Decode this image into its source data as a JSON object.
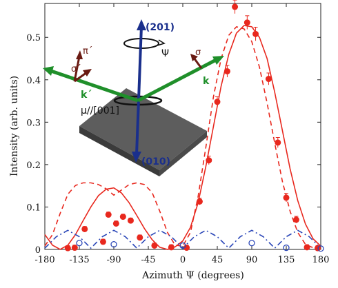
{
  "chart_data": {
    "type": "scatter",
    "xlabel": "Azimuth Ψ (degrees)",
    "ylabel": "Intensity (arb. units)",
    "xlim": [
      -180,
      180
    ],
    "ylim": [
      0,
      0.58
    ],
    "x_ticks": [
      "-180",
      "-135",
      "-90",
      "-45",
      "0",
      "45",
      "90",
      "135",
      "180"
    ],
    "y_ticks": [
      "0",
      "0.1",
      "0.2",
      "0.3",
      "0.4",
      "0.5"
    ],
    "colors": {
      "red": "#e8281e",
      "blue": "#2b47b8",
      "green": "#1f8f2a",
      "brown": "#6a1a12",
      "navy": "#1a2f8c",
      "slab": "#5a5a5a"
    },
    "series": [
      {
        "kind": "data-points-filled",
        "color": "#e8281e",
        "x": [
          -150,
          -141,
          -128,
          -104,
          -97,
          -87,
          -78,
          -68,
          -56,
          -37,
          -15,
          5,
          22,
          34,
          45,
          58,
          68,
          84,
          95,
          112,
          124,
          135,
          148,
          162,
          176
        ],
        "y": [
          0.003,
          0.004,
          0.048,
          0.018,
          0.082,
          0.061,
          0.077,
          0.068,
          0.028,
          0.009,
          0.005,
          0.004,
          0.113,
          0.21,
          0.348,
          0.42,
          0.572,
          0.535,
          0.508,
          0.402,
          0.252,
          0.122,
          0.07,
          0.005,
          0.003
        ],
        "err": [
          0.006,
          0.006,
          0.006,
          0.006,
          0.006,
          0.006,
          0.006,
          0.006,
          0.006,
          0.006,
          0.006,
          0.006,
          0.008,
          0.01,
          0.012,
          0.014,
          0.016,
          0.016,
          0.016,
          0.014,
          0.012,
          0.01,
          0.008,
          0.006,
          0.006
        ]
      },
      {
        "kind": "data-points-open",
        "color": "#2b47b8",
        "x": [
          -135,
          -90,
          0,
          90,
          135,
          180
        ],
        "y": [
          0.015,
          0.012,
          0.009,
          0.015,
          0.004,
          0.002
        ]
      },
      {
        "kind": "fit-solid",
        "color": "#e8281e",
        "x": [
          -180,
          -170,
          -160,
          -150,
          -140,
          -130,
          -120,
          -110,
          -100,
          -90,
          -80,
          -70,
          -60,
          -50,
          -40,
          -30,
          -20,
          -10,
          0,
          10,
          20,
          30,
          40,
          50,
          60,
          70,
          80,
          90,
          100,
          110,
          120,
          130,
          140,
          150,
          160,
          170,
          180
        ],
        "y": [
          0.035,
          0.01,
          0.0,
          0.01,
          0.035,
          0.068,
          0.1,
          0.127,
          0.142,
          0.145,
          0.133,
          0.11,
          0.08,
          0.049,
          0.023,
          0.005,
          0.0,
          0.006,
          0.02,
          0.052,
          0.11,
          0.195,
          0.29,
          0.385,
          0.46,
          0.51,
          0.528,
          0.525,
          0.5,
          0.45,
          0.37,
          0.28,
          0.19,
          0.115,
          0.06,
          0.025,
          0.008
        ]
      },
      {
        "kind": "fit-dashed",
        "color": "#e8281e",
        "x": [
          -180,
          -170,
          -160,
          -150,
          -140,
          -130,
          -120,
          -110,
          -100,
          -90,
          -80,
          -70,
          -60,
          -50,
          -40,
          -30,
          -20,
          -10,
          0,
          10,
          20,
          30,
          40,
          50,
          60,
          70,
          80,
          90,
          100,
          110,
          120,
          130,
          140,
          150,
          160,
          170,
          180
        ],
        "y": [
          0.008,
          0.035,
          0.085,
          0.13,
          0.151,
          0.157,
          0.157,
          0.153,
          0.143,
          0.128,
          0.14,
          0.153,
          0.157,
          0.153,
          0.134,
          0.09,
          0.04,
          0.01,
          0.008,
          0.04,
          0.125,
          0.24,
          0.36,
          0.45,
          0.505,
          0.525,
          0.52,
          0.49,
          0.43,
          0.345,
          0.25,
          0.16,
          0.09,
          0.04,
          0.012,
          0.004,
          0.0
        ]
      },
      {
        "kind": "fit-dashdot",
        "color": "#2b47b8",
        "x": [
          -180,
          -165,
          -150,
          -135,
          -120,
          -105,
          -90,
          -75,
          -60,
          -45,
          -30,
          -15,
          0,
          15,
          30,
          45,
          60,
          75,
          90,
          105,
          120,
          135,
          150,
          165,
          180
        ],
        "y": [
          0.003,
          0.03,
          0.045,
          0.03,
          0.003,
          0.03,
          0.045,
          0.03,
          0.003,
          0.03,
          0.045,
          0.03,
          0.003,
          0.03,
          0.045,
          0.03,
          0.003,
          0.03,
          0.045,
          0.03,
          0.003,
          0.03,
          0.045,
          0.03,
          0.003
        ]
      }
    ],
    "inset_labels": {
      "axis_201": "(201)",
      "axis_010": "(010)",
      "psi": "Ψ",
      "sigma": "σ",
      "k": "k",
      "pi_prime": "π´",
      "sigma_prime": "σ´",
      "k_prime": "k´",
      "mu": "μ//[001]"
    },
    "grid": false,
    "legend": "none"
  }
}
